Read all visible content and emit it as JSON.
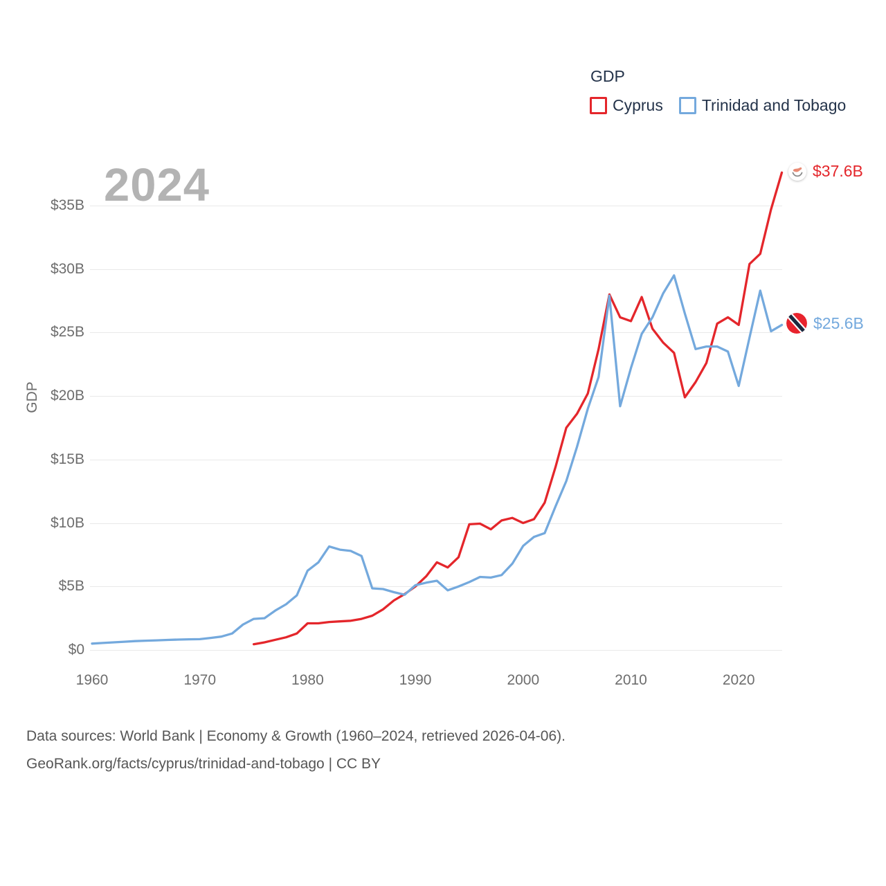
{
  "legend": {
    "title": "GDP",
    "items": [
      {
        "label": "Cyprus",
        "color": "#e4262b"
      },
      {
        "label": "Trinidad and Tobago",
        "color": "#74a9dd"
      }
    ]
  },
  "watermark": "2024",
  "y_axis_title": "GDP",
  "end_labels": [
    {
      "series": "Cyprus",
      "value": "$37.6B",
      "icon": "cyprus-flag-icon",
      "color": "#e4262b"
    },
    {
      "series": "Trinidad and Tobago",
      "value": "$25.6B",
      "icon": "trinidad-and-tobago-flag-icon",
      "color": "#74a9dd"
    }
  ],
  "footer": {
    "line1": "Data sources: World Bank | Economy & Growth (1960–2024, retrieved 2026-04-06).",
    "line2": "GeoRank.org/facts/cyprus/trinidad-and-tobago | CC BY"
  },
  "colors": {
    "cyprus_red": "#e4262b",
    "trinidad_blue": "#74a9dd",
    "watermark_gray": "#b3b3b3",
    "axis_text": "#6d6d6d",
    "legend_text": "#24334a",
    "gridline": "#e9e9e9",
    "footer_text": "#565656"
  },
  "chart_data": {
    "type": "line",
    "title": "GDP",
    "xlabel": "",
    "ylabel": "GDP",
    "grid": "horizontal",
    "legend_position": "top-right",
    "xlim": [
      1960,
      2024
    ],
    "ylim": [
      0,
      38.8
    ],
    "x_ticks": [
      1960,
      1970,
      1980,
      1990,
      2000,
      2010,
      2020
    ],
    "y_ticks": [
      {
        "value": 0,
        "label": "$0"
      },
      {
        "value": 5,
        "label": "$5B"
      },
      {
        "value": 10,
        "label": "$10B"
      },
      {
        "value": 15,
        "label": "$15B"
      },
      {
        "value": 20,
        "label": "$20B"
      },
      {
        "value": 25,
        "label": "$25B"
      },
      {
        "value": 30,
        "label": "$30B"
      },
      {
        "value": 35,
        "label": "$35B"
      }
    ],
    "series": [
      {
        "name": "Cyprus",
        "color": "#e4262b",
        "unit": "billion USD",
        "x_start": 1975,
        "x_step": 1,
        "x_end": 2024,
        "end_value_label": "$37.6B",
        "values": [
          0.45,
          0.6,
          0.8,
          1.0,
          1.3,
          2.1,
          2.1,
          2.2,
          2.25,
          2.3,
          2.45,
          2.7,
          3.2,
          3.9,
          4.4,
          5.0,
          5.8,
          6.9,
          6.5,
          7.3,
          9.9,
          9.95,
          9.5,
          10.2,
          10.4,
          10.0,
          10.3,
          11.6,
          14.4,
          17.5,
          18.6,
          20.2,
          23.7,
          28.0,
          26.2,
          25.9,
          27.8,
          25.3,
          24.2,
          23.4,
          19.9,
          21.1,
          22.6,
          25.7,
          26.2,
          25.6,
          30.4,
          31.2,
          34.7,
          37.6
        ]
      },
      {
        "name": "Trinidad and Tobago",
        "color": "#74a9dd",
        "unit": "billion USD",
        "x_start": 1960,
        "x_step": 1,
        "x_end": 2024,
        "end_value_label": "$25.6B",
        "values": [
          0.5,
          0.55,
          0.6,
          0.65,
          0.7,
          0.73,
          0.76,
          0.79,
          0.82,
          0.84,
          0.85,
          0.95,
          1.05,
          1.3,
          2.0,
          2.45,
          2.5,
          3.1,
          3.6,
          4.3,
          6.25,
          6.9,
          8.15,
          7.9,
          7.8,
          7.4,
          4.85,
          4.8,
          4.55,
          4.35,
          5.1,
          5.3,
          5.45,
          4.7,
          5.0,
          5.35,
          5.75,
          5.7,
          5.9,
          6.8,
          8.2,
          8.9,
          9.2,
          11.3,
          13.3,
          16.0,
          19.0,
          21.5,
          27.9,
          19.2,
          22.2,
          24.9,
          26.2,
          28.1,
          29.5,
          26.5,
          23.7,
          23.9,
          23.9,
          23.5,
          20.8,
          24.6,
          28.3,
          25.1,
          25.6
        ]
      }
    ]
  }
}
